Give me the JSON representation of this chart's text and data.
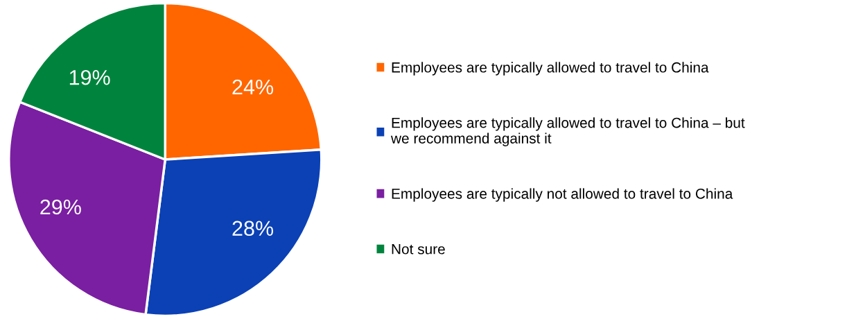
{
  "chart_data": {
    "type": "pie",
    "categories": [
      "Employees are typically allowed to travel to China",
      "Employees are typically allowed to travel to China – but we recommend against it",
      "Employees are typically not allowed to travel to China",
      "Not sure"
    ],
    "values": [
      24,
      28,
      29,
      19
    ],
    "value_labels": [
      "24%",
      "28%",
      "29%",
      "19%"
    ],
    "colors": [
      "#ff6600",
      "#0b41b5",
      "#7a1fa2",
      "#00843d"
    ],
    "legend": "right"
  }
}
